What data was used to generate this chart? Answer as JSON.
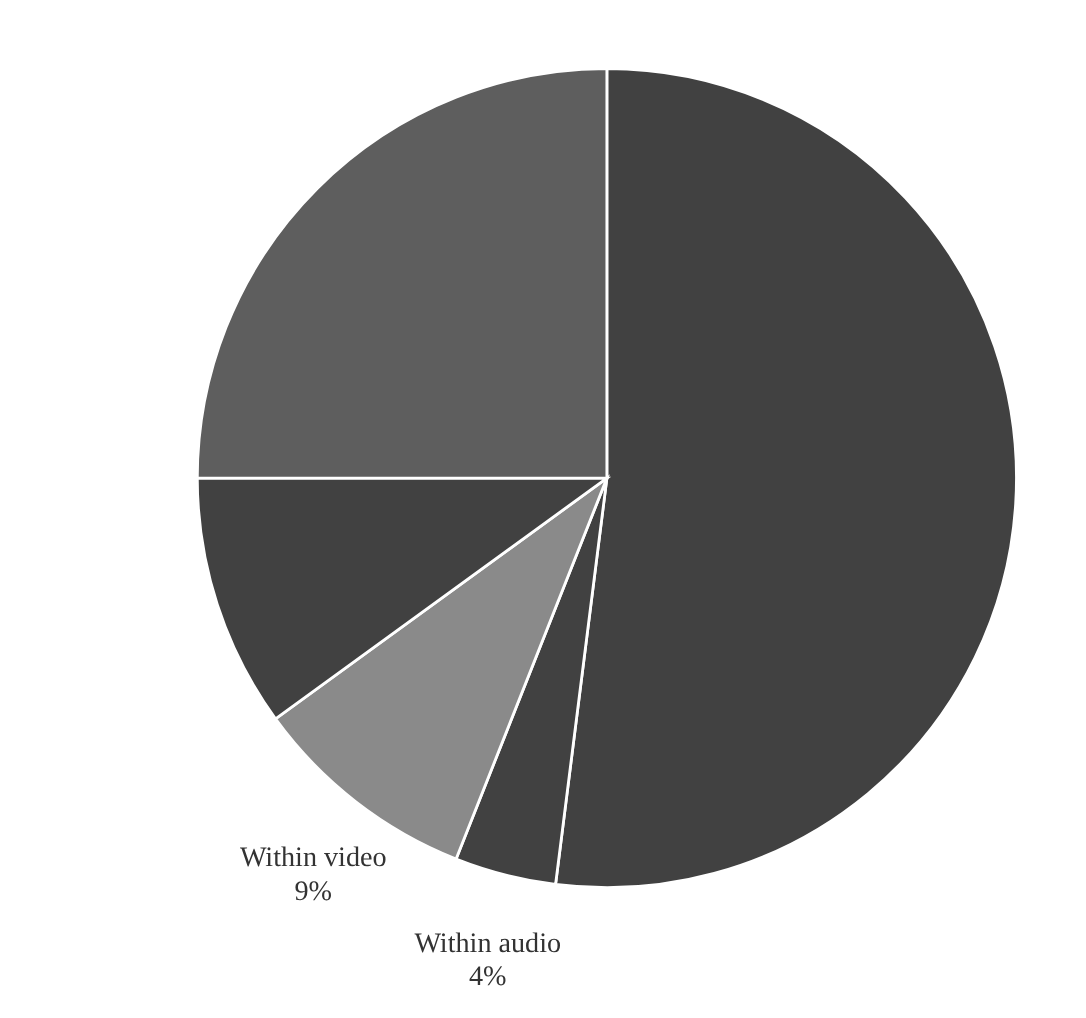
{
  "chart_data": {
    "type": "pie",
    "categories": [
      null,
      "Within audio",
      "Within video",
      null,
      null
    ],
    "values": [
      52,
      4,
      9,
      10,
      25
    ],
    "colors": [
      "#414141",
      "#414141",
      "#8a8a8a",
      "#414141",
      "#5e5e5e"
    ],
    "value_labels": [
      null,
      "4%",
      "9%",
      null,
      null
    ]
  }
}
